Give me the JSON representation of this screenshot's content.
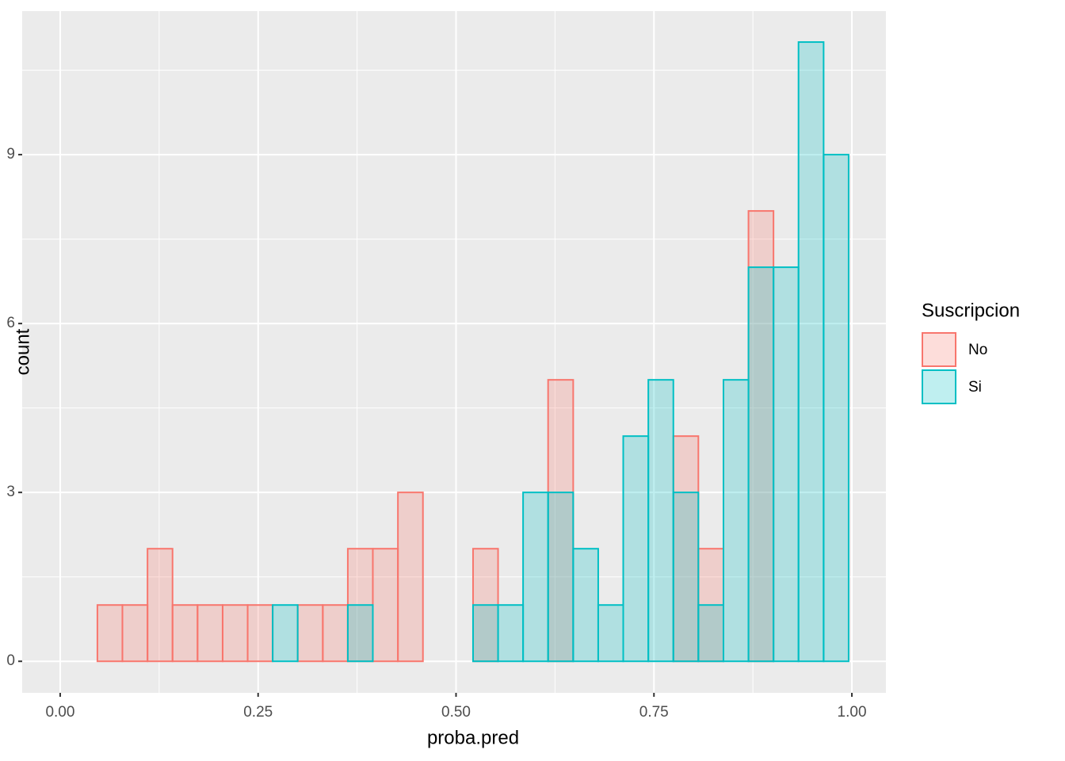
{
  "chart_data": {
    "type": "histogram",
    "x_label": "proba.pred",
    "y_label": "count",
    "legend_title": "Suscripcion",
    "bins": [
      0.047,
      0.0786,
      0.1103,
      0.1419,
      0.1735,
      0.2052,
      0.2368,
      0.2684,
      0.3,
      0.3317,
      0.3633,
      0.3949,
      0.4266,
      0.4582,
      0.4898,
      0.5215,
      0.5531,
      0.5847,
      0.6163,
      0.648,
      0.6796,
      0.7112,
      0.7429,
      0.7745,
      0.8061,
      0.8378,
      0.8694,
      0.901,
      0.9326,
      0.9643,
      0.9959
    ],
    "series": [
      {
        "name": "No",
        "color": "#F8766D",
        "values": [
          1,
          1,
          2,
          1,
          1,
          1,
          1,
          0,
          1,
          1,
          2,
          2,
          3,
          0,
          0,
          2,
          0,
          0,
          5,
          0,
          0,
          0,
          0,
          4,
          2,
          0,
          8,
          0,
          0,
          0
        ]
      },
      {
        "name": "Si",
        "color": "#00BFC4",
        "values": [
          0,
          0,
          0,
          0,
          0,
          0,
          0,
          1,
          0,
          0,
          1,
          0,
          0,
          0,
          0,
          1,
          1,
          3,
          3,
          2,
          1,
          4,
          5,
          3,
          1,
          5,
          7,
          7,
          11,
          9
        ]
      }
    ],
    "xlim": [
      -0.048,
      1.043
    ],
    "ylim": [
      -0.56,
      11.55
    ],
    "xticks": [
      {
        "value": 0,
        "label": "0.00"
      },
      {
        "value": 0.25,
        "label": "0.25"
      },
      {
        "value": 0.5,
        "label": "0.50"
      },
      {
        "value": 0.75,
        "label": "0.75"
      },
      {
        "value": 1,
        "label": "1.00"
      }
    ],
    "yticks": [
      0,
      3,
      6,
      9
    ],
    "grid": true
  }
}
